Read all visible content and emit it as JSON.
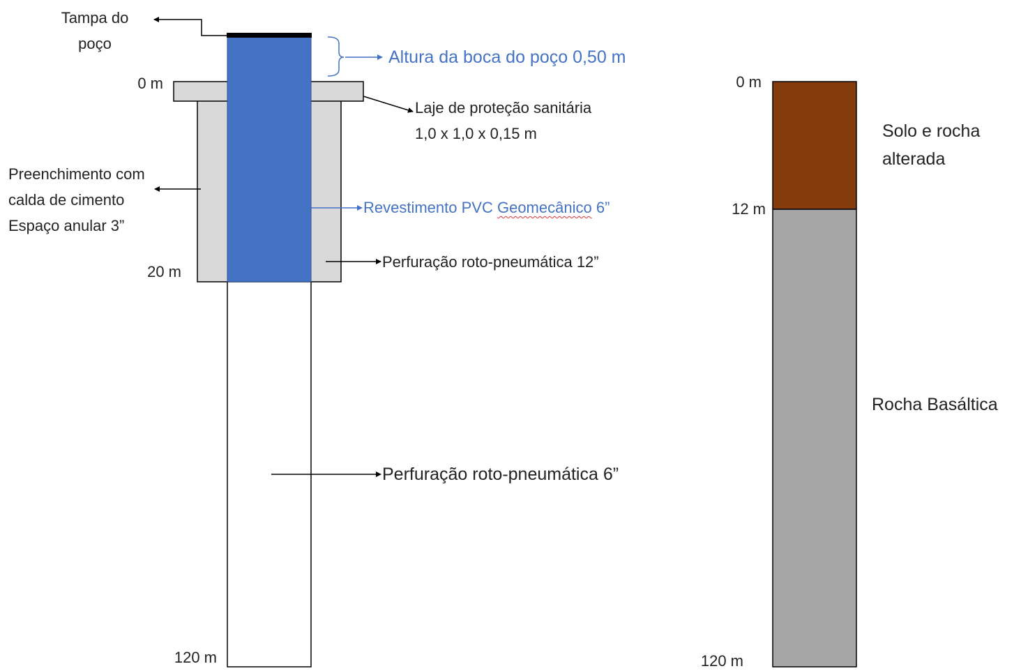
{
  "colors": {
    "casing_blue": "#4472c4",
    "grout_gray": "#d9d9d9",
    "soil_brown": "#843c0c",
    "basalt_gray": "#a6a6a6",
    "cap_black": "#000000",
    "label_blue": "#4472c4",
    "text": "#222222"
  },
  "well": {
    "cap_label_line1": "Tampa do",
    "cap_label_line2": "poço",
    "depth_0": "0 m",
    "depth_20": "20 m",
    "depth_120": "120 m",
    "wellhead_height_label": "Altura da boca do poço 0,50 m",
    "slab_label_line1": "Laje de proteção sanitária",
    "slab_label_line2": "1,0 x 1,0 x 0,15 m",
    "grout_label_line1": "Preenchimento com",
    "grout_label_line2": "calda de cimento",
    "grout_label_line3": "Espaço anular 3”",
    "casing_label_prefix": "Revestimento PVC ",
    "casing_label_word": "Geomecânico",
    "casing_label_suffix": " 6”",
    "drilling_12_label": "Perfuração roto-pneumática 12”",
    "drilling_6_label": "Perfuração roto-pneumática 6”"
  },
  "lithology": {
    "depth_0": "0 m",
    "depth_12": "12 m",
    "depth_120": "120 m",
    "soil_label_line1": "Solo e rocha",
    "soil_label_line2": "alterada",
    "basalt_label": "Rocha Basáltica"
  }
}
